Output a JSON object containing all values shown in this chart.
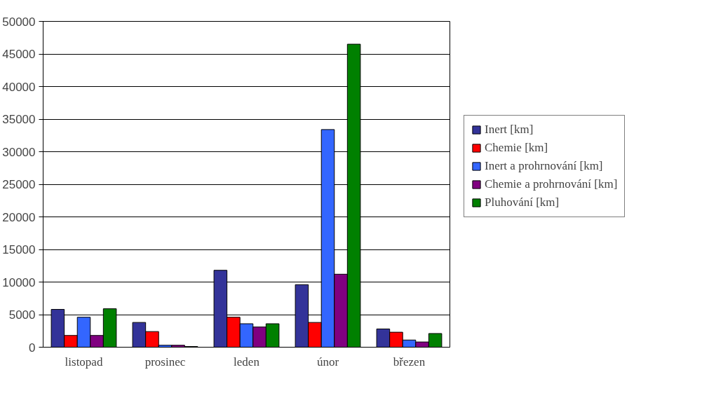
{
  "chart_data": {
    "type": "bar",
    "categories": [
      "listopad",
      "prosinec",
      "leden",
      "únor",
      "březen"
    ],
    "series": [
      {
        "name": "Inert [km]",
        "color": "#333399",
        "values": [
          5800,
          3800,
          11800,
          9600,
          2800
        ]
      },
      {
        "name": "Chemie [km]",
        "color": "#ff0000",
        "values": [
          1800,
          2400,
          4600,
          3800,
          2300
        ]
      },
      {
        "name": "Inert a prohrnování [km]",
        "color": "#3366ff",
        "values": [
          4600,
          300,
          3600,
          33400,
          1100
        ]
      },
      {
        "name": "Chemie a prohrnování [km]",
        "color": "#800080",
        "values": [
          1800,
          300,
          3100,
          11200,
          800
        ]
      },
      {
        "name": "Pluhování [km]",
        "color": "#008000",
        "values": [
          5900,
          100,
          3600,
          46500,
          2100
        ]
      }
    ],
    "ylim": [
      0,
      50000
    ],
    "yticks": [
      0,
      5000,
      10000,
      15000,
      20000,
      25000,
      30000,
      35000,
      40000,
      45000,
      50000
    ],
    "grid": "y",
    "legend": "right"
  }
}
